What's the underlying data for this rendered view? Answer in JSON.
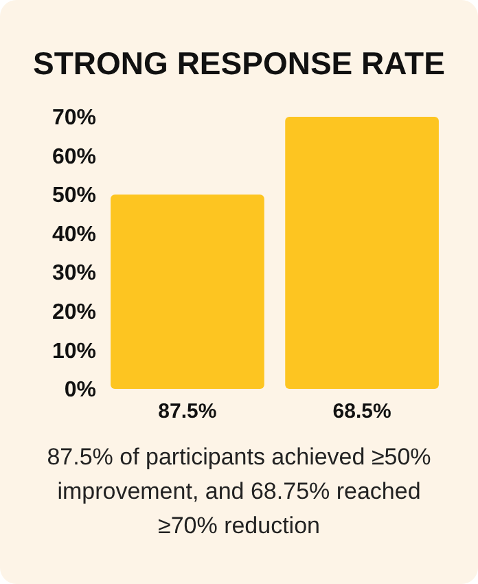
{
  "chart_data": {
    "type": "bar",
    "title": "STRONG RESPONSE RATE",
    "categories": [
      "87.5%",
      "68.5%"
    ],
    "values": [
      50,
      70
    ],
    "color": "#fdc521",
    "ylim": [
      0,
      70
    ],
    "yticks": [
      {
        "value": 0,
        "label": "0%"
      },
      {
        "value": 10,
        "label": "10%"
      },
      {
        "value": 20,
        "label": "20%"
      },
      {
        "value": 30,
        "label": "30%"
      },
      {
        "value": 40,
        "label": "40%"
      },
      {
        "value": 50,
        "label": "50%"
      },
      {
        "value": 60,
        "label": "60%"
      },
      {
        "value": 70,
        "label": "70%"
      }
    ],
    "grid": false,
    "annotations": [
      "87.5% of participants achieved ≥50% improvement, and 68.75% reached ≥70% reduction"
    ]
  }
}
